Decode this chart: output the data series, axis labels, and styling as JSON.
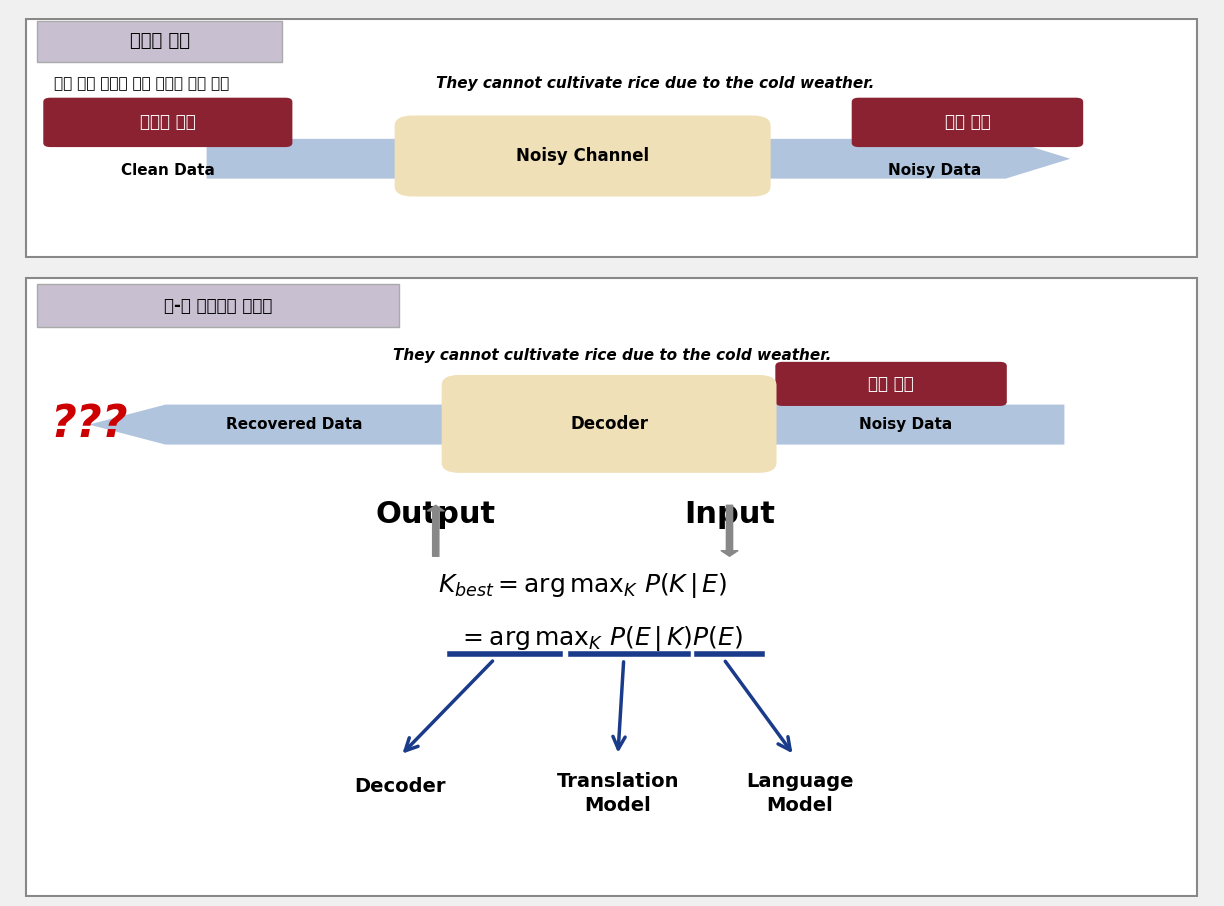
{
  "bg_color": "#f0f0f0",
  "panel1": {
    "title": "노이즈 채널",
    "title_bg": "#c8c0d0",
    "korean_sentence": "추운 날씨 때문에 쌀을 재배할 수가 없다",
    "english_sentence": "They cannot cultivate rice due to the cold weather.",
    "box1_label": "한국어 문장",
    "box1_sublabel": "Clean Data",
    "box1_color": "#8b2232",
    "box_middle_label": "Noisy Channel",
    "box_middle_color": "#f0e0b8",
    "box2_label": "영어 문장",
    "box2_sublabel": "Noisy Data",
    "box2_color": "#8b2232",
    "arrow_color": "#b0c4de"
  },
  "panel2": {
    "title": "영-한 기계번역 시스템",
    "title_bg": "#c8c0d0",
    "english_sentence": "They cannot cultivate rice due to the cold weather.",
    "box_eng_label": "영어 문장",
    "box_eng_color": "#8b2232",
    "box_middle_label": "Decoder",
    "box_middle_color": "#f0e0b8",
    "noisy_label": "Noisy Data",
    "recovered_label": "Recovered Data",
    "arrow_color": "#b0c4de",
    "question_marks": "???",
    "question_color": "#cc0000",
    "output_label": "Output",
    "input_label": "Input",
    "decoder_label": "Decoder",
    "translation_label": "Translation\nModel",
    "language_label": "Language\nModel",
    "underline_color": "#1a3a8a",
    "arrow2_color": "#1a3a8a",
    "gray_arrow_color": "#888888"
  }
}
